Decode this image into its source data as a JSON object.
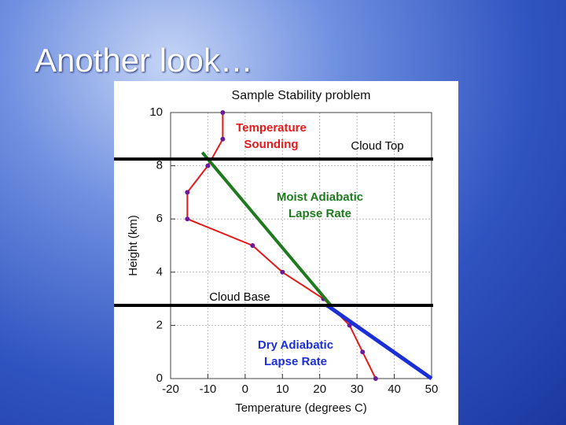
{
  "slide_title": "Another look…",
  "chart_data": {
    "type": "line",
    "title": "Sample Stability problem",
    "x_label": "Temperature (degrees C)",
    "y_label": "Height (km)",
    "xlim": [
      -20,
      50
    ],
    "xticks": [
      -20,
      -10,
      0,
      10,
      20,
      30,
      40,
      50
    ],
    "ylim": [
      0,
      10
    ],
    "yticks": [
      0,
      2,
      4,
      6,
      8,
      10
    ],
    "grid": true,
    "series": [
      {
        "label": [
          "Temperature",
          "Sounding"
        ],
        "color": "#e41a1a",
        "markers": true,
        "x": [
          -6,
          -6,
          -10,
          -15.5,
          -15.5,
          2,
          10,
          21,
          28,
          31.5,
          35
        ],
        "values": [
          10,
          9,
          8,
          7,
          6,
          5,
          4,
          3,
          2,
          1,
          0
        ]
      },
      {
        "label": [
          "Moist Adiabatic",
          "Lapse Rate"
        ],
        "color": "#1f7a1f",
        "markers": false,
        "x": [
          -11.5,
          23
        ],
        "values": [
          8.5,
          2.75
        ]
      },
      {
        "label": [
          "Dry Adiabatic",
          "Lapse Rate"
        ],
        "color": "#1a2fd6",
        "markers": false,
        "x": [
          22,
          50
        ],
        "values": [
          2.75,
          0
        ]
      }
    ],
    "reference_lines": [
      {
        "label": "Cloud Top",
        "value": 8.25
      },
      {
        "label": "Cloud Base",
        "value": 2.75
      }
    ]
  }
}
